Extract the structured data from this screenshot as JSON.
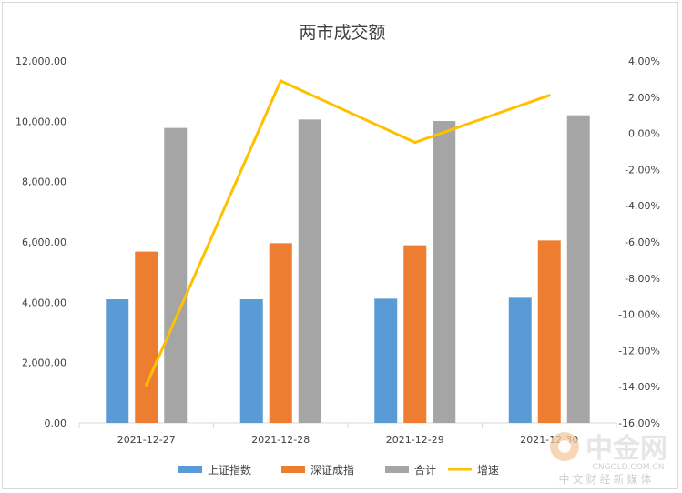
{
  "chart_data": {
    "type": "bar",
    "title": "两市成交额",
    "categories": [
      "2021-12-27",
      "2021-12-28",
      "2021-12-29",
      "2021-12-30"
    ],
    "series": [
      {
        "name": "上证指数",
        "kind": "bar",
        "axis": "left",
        "color": "#5b9bd5",
        "values": [
          4100,
          4100,
          4120,
          4150
        ]
      },
      {
        "name": "深证成指",
        "kind": "bar",
        "axis": "left",
        "color": "#ed7d31",
        "values": [
          5680,
          5960,
          5890,
          6050
        ]
      },
      {
        "name": "合计",
        "kind": "bar",
        "axis": "left",
        "color": "#a5a5a5",
        "values": [
          9780,
          10060,
          10010,
          10200
        ]
      },
      {
        "name": "增速",
        "kind": "line",
        "axis": "right",
        "color": "#ffc000",
        "values": [
          -13.9,
          2.9,
          -0.5,
          2.1
        ]
      }
    ],
    "y_left": {
      "min": 0,
      "max": 12000,
      "ticks": [
        {
          "value": 0,
          "label": "0.00"
        },
        {
          "value": 2000,
          "label": "2,000.00"
        },
        {
          "value": 4000,
          "label": "4,000.00"
        },
        {
          "value": 6000,
          "label": "6,000.00"
        },
        {
          "value": 8000,
          "label": "8,000.00"
        },
        {
          "value": 10000,
          "label": "10,000.00"
        },
        {
          "value": 12000,
          "label": "12,000.00"
        }
      ]
    },
    "y_right": {
      "min": -16,
      "max": 4,
      "ticks": [
        {
          "value": 4,
          "label": "4.00%"
        },
        {
          "value": 2,
          "label": "2.00%"
        },
        {
          "value": 0,
          "label": "0.00%"
        },
        {
          "value": -2,
          "label": "-2.00%"
        },
        {
          "value": -4,
          "label": "-4.00%"
        },
        {
          "value": -6,
          "label": "-6.00%"
        },
        {
          "value": -8,
          "label": "-8.00%"
        },
        {
          "value": -10,
          "label": "-10.00%"
        },
        {
          "value": -12,
          "label": "-12.00%"
        },
        {
          "value": -14,
          "label": "-14.00%"
        },
        {
          "value": -16,
          "label": "-16.00%"
        }
      ]
    },
    "grid": false,
    "legend_position": "bottom"
  },
  "watermark": {
    "brand": "中金网",
    "domain": "CNGOLD.COM.CN",
    "slogan": "中文财经新媒体"
  }
}
